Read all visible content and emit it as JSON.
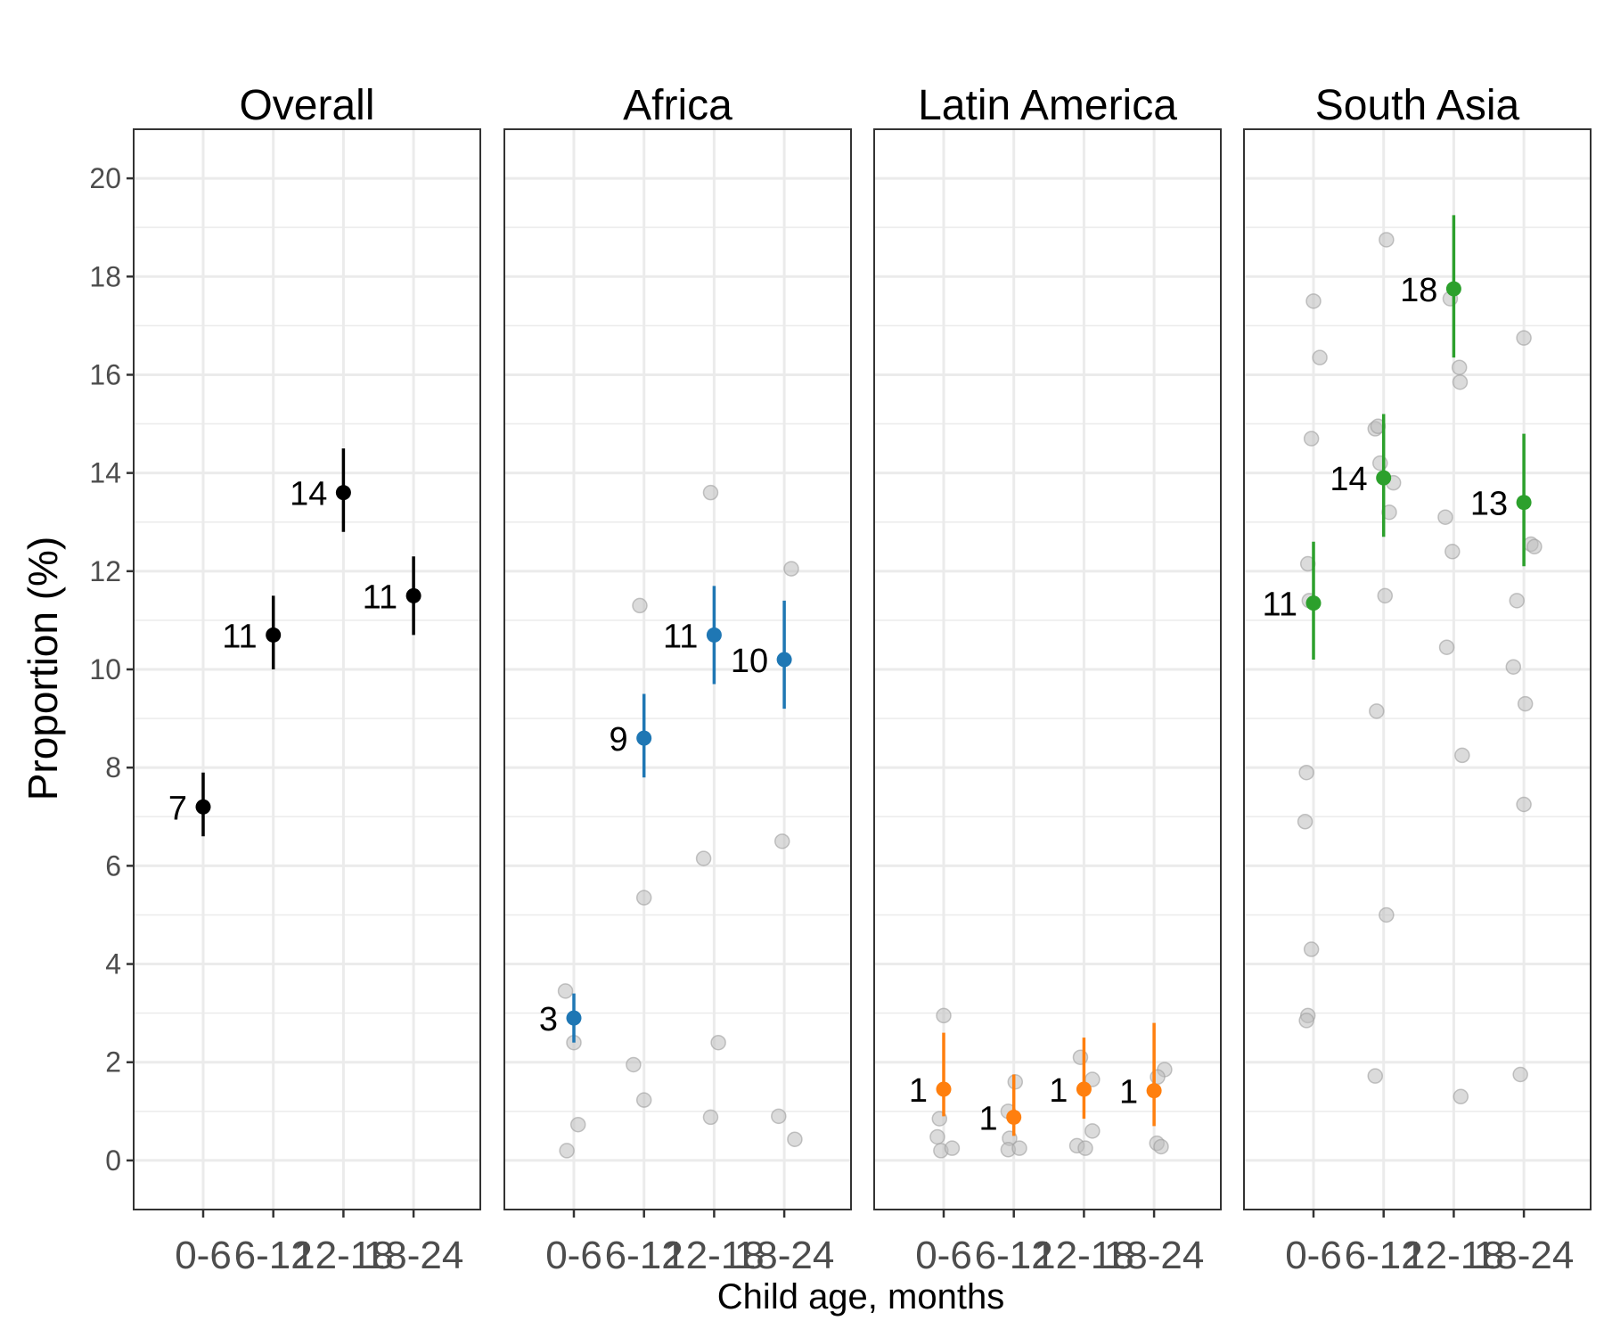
{
  "chart_data": {
    "type": "scatter",
    "xlabel": "Child age, months",
    "ylabel": "Proportion (%)",
    "ylim": [
      -1,
      21
    ],
    "yticks": [
      0,
      2,
      4,
      6,
      8,
      10,
      12,
      14,
      16,
      18,
      20
    ],
    "categories": [
      "0-6",
      "6-12",
      "12-18",
      "18-24"
    ],
    "grid": true,
    "background_point_color": "#bdbdbd",
    "facets": [
      {
        "title": "Overall",
        "color": "#000000",
        "estimates": [
          {
            "category": "0-6",
            "value": 7.2,
            "lower": 6.6,
            "upper": 7.9,
            "label": "7"
          },
          {
            "category": "6-12",
            "value": 10.7,
            "lower": 10.0,
            "upper": 11.5,
            "label": "11"
          },
          {
            "category": "12-18",
            "value": 13.6,
            "lower": 12.8,
            "upper": 14.5,
            "label": "14"
          },
          {
            "category": "18-24",
            "value": 11.5,
            "lower": 10.7,
            "upper": 12.3,
            "label": "11"
          }
        ],
        "study_points": []
      },
      {
        "title": "Africa",
        "color": "#1f77b4",
        "estimates": [
          {
            "category": "0-6",
            "value": 2.9,
            "lower": 2.4,
            "upper": 3.4,
            "label": "3"
          },
          {
            "category": "6-12",
            "value": 8.6,
            "lower": 7.8,
            "upper": 9.5,
            "label": "9"
          },
          {
            "category": "12-18",
            "value": 10.7,
            "lower": 9.7,
            "upper": 11.7,
            "label": "11"
          },
          {
            "category": "18-24",
            "value": 10.2,
            "lower": 9.2,
            "upper": 11.4,
            "label": "10"
          }
        ],
        "study_points": [
          {
            "category": "0-6",
            "jitter": -0.12,
            "value": 3.45
          },
          {
            "category": "0-6",
            "jitter": 0.0,
            "value": 2.4
          },
          {
            "category": "0-6",
            "jitter": 0.06,
            "value": 0.73
          },
          {
            "category": "0-6",
            "jitter": -0.1,
            "value": 0.2
          },
          {
            "category": "6-12",
            "jitter": -0.06,
            "value": 11.3
          },
          {
            "category": "6-12",
            "jitter": 0.0,
            "value": 5.35
          },
          {
            "category": "6-12",
            "jitter": -0.15,
            "value": 1.95
          },
          {
            "category": "6-12",
            "jitter": 0.0,
            "value": 1.23
          },
          {
            "category": "12-18",
            "jitter": -0.05,
            "value": 13.6
          },
          {
            "category": "12-18",
            "jitter": -0.15,
            "value": 6.15
          },
          {
            "category": "12-18",
            "jitter": 0.06,
            "value": 2.4
          },
          {
            "category": "12-18",
            "jitter": -0.05,
            "value": 0.88
          },
          {
            "category": "18-24",
            "jitter": 0.1,
            "value": 12.05
          },
          {
            "category": "18-24",
            "jitter": -0.03,
            "value": 6.5
          },
          {
            "category": "18-24",
            "jitter": -0.08,
            "value": 0.9
          },
          {
            "category": "18-24",
            "jitter": 0.15,
            "value": 0.43
          }
        ]
      },
      {
        "title": "Latin America",
        "color": "#ff7f0e",
        "estimates": [
          {
            "category": "0-6",
            "value": 1.45,
            "lower": 0.9,
            "upper": 2.6,
            "label": "1"
          },
          {
            "category": "6-12",
            "value": 0.88,
            "lower": 0.5,
            "upper": 1.75,
            "label": "1"
          },
          {
            "category": "12-18",
            "value": 1.45,
            "lower": 0.85,
            "upper": 2.5,
            "label": "1"
          },
          {
            "category": "18-24",
            "value": 1.42,
            "lower": 0.7,
            "upper": 2.8,
            "label": "1"
          }
        ],
        "study_points": [
          {
            "category": "0-6",
            "jitter": 0.0,
            "value": 2.95
          },
          {
            "category": "0-6",
            "jitter": -0.06,
            "value": 0.85
          },
          {
            "category": "0-6",
            "jitter": -0.09,
            "value": 0.48
          },
          {
            "category": "0-6",
            "jitter": -0.04,
            "value": 0.2
          },
          {
            "category": "0-6",
            "jitter": 0.12,
            "value": 0.25
          },
          {
            "category": "6-12",
            "jitter": 0.02,
            "value": 1.6
          },
          {
            "category": "6-12",
            "jitter": -0.08,
            "value": 1.0
          },
          {
            "category": "6-12",
            "jitter": -0.06,
            "value": 0.45
          },
          {
            "category": "6-12",
            "jitter": -0.08,
            "value": 0.22
          },
          {
            "category": "6-12",
            "jitter": 0.08,
            "value": 0.25
          },
          {
            "category": "12-18",
            "jitter": -0.05,
            "value": 2.1
          },
          {
            "category": "12-18",
            "jitter": 0.12,
            "value": 1.65
          },
          {
            "category": "12-18",
            "jitter": 0.12,
            "value": 0.6
          },
          {
            "category": "12-18",
            "jitter": -0.1,
            "value": 0.3
          },
          {
            "category": "12-18",
            "jitter": 0.02,
            "value": 0.25
          },
          {
            "category": "18-24",
            "jitter": 0.15,
            "value": 1.85
          },
          {
            "category": "18-24",
            "jitter": 0.05,
            "value": 1.7
          },
          {
            "category": "18-24",
            "jitter": 0.04,
            "value": 0.35
          },
          {
            "category": "18-24",
            "jitter": 0.1,
            "value": 0.28
          }
        ]
      },
      {
        "title": "South Asia",
        "color": "#2ca02c",
        "estimates": [
          {
            "category": "0-6",
            "value": 11.35,
            "lower": 10.2,
            "upper": 12.6,
            "label": "11"
          },
          {
            "category": "6-12",
            "value": 13.9,
            "lower": 12.7,
            "upper": 15.2,
            "label": "14"
          },
          {
            "category": "12-18",
            "value": 17.75,
            "lower": 16.35,
            "upper": 19.25,
            "label": "18"
          },
          {
            "category": "18-24",
            "value": 13.4,
            "lower": 12.1,
            "upper": 14.8,
            "label": "13"
          }
        ],
        "study_points": [
          {
            "category": "0-6",
            "jitter": 0.0,
            "value": 17.5
          },
          {
            "category": "0-6",
            "jitter": 0.09,
            "value": 16.35
          },
          {
            "category": "0-6",
            "jitter": -0.03,
            "value": 14.7
          },
          {
            "category": "0-6",
            "jitter": -0.08,
            "value": 12.15
          },
          {
            "category": "0-6",
            "jitter": -0.06,
            "value": 11.4
          },
          {
            "category": "0-6",
            "jitter": -0.1,
            "value": 7.9
          },
          {
            "category": "0-6",
            "jitter": -0.12,
            "value": 6.9
          },
          {
            "category": "0-6",
            "jitter": -0.03,
            "value": 4.3
          },
          {
            "category": "0-6",
            "jitter": -0.08,
            "value": 2.95
          },
          {
            "category": "0-6",
            "jitter": -0.1,
            "value": 2.85
          },
          {
            "category": "6-12",
            "jitter": 0.04,
            "value": 18.75
          },
          {
            "category": "6-12",
            "jitter": -0.12,
            "value": 14.9
          },
          {
            "category": "6-12",
            "jitter": -0.08,
            "value": 14.95
          },
          {
            "category": "6-12",
            "jitter": -0.05,
            "value": 14.2
          },
          {
            "category": "6-12",
            "jitter": 0.14,
            "value": 13.8
          },
          {
            "category": "6-12",
            "jitter": 0.08,
            "value": 13.2
          },
          {
            "category": "6-12",
            "jitter": 0.02,
            "value": 11.5
          },
          {
            "category": "6-12",
            "jitter": -0.1,
            "value": 9.15
          },
          {
            "category": "6-12",
            "jitter": 0.04,
            "value": 5.0
          },
          {
            "category": "6-12",
            "jitter": -0.12,
            "value": 1.72
          },
          {
            "category": "12-18",
            "jitter": -0.05,
            "value": 17.55
          },
          {
            "category": "12-18",
            "jitter": 0.08,
            "value": 16.15
          },
          {
            "category": "12-18",
            "jitter": 0.09,
            "value": 15.85
          },
          {
            "category": "12-18",
            "jitter": -0.12,
            "value": 13.1
          },
          {
            "category": "12-18",
            "jitter": -0.02,
            "value": 12.4
          },
          {
            "category": "12-18",
            "jitter": -0.1,
            "value": 10.45
          },
          {
            "category": "12-18",
            "jitter": 0.12,
            "value": 8.25
          },
          {
            "category": "12-18",
            "jitter": 0.1,
            "value": 1.3
          },
          {
            "category": "18-24",
            "jitter": 0.0,
            "value": 16.75
          },
          {
            "category": "18-24",
            "jitter": 0.1,
            "value": 12.55
          },
          {
            "category": "18-24",
            "jitter": 0.15,
            "value": 12.5
          },
          {
            "category": "18-24",
            "jitter": -0.1,
            "value": 11.4
          },
          {
            "category": "18-24",
            "jitter": -0.15,
            "value": 10.05
          },
          {
            "category": "18-24",
            "jitter": 0.02,
            "value": 9.3
          },
          {
            "category": "18-24",
            "jitter": 0.0,
            "value": 7.25
          },
          {
            "category": "18-24",
            "jitter": -0.05,
            "value": 1.75
          }
        ]
      }
    ]
  }
}
